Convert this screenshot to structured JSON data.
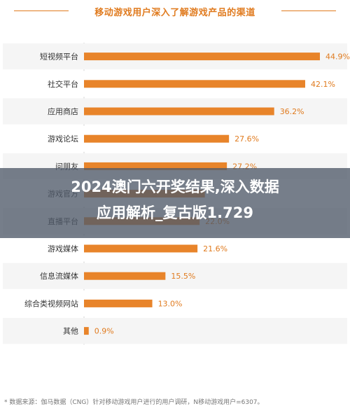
{
  "chart_data": {
    "type": "bar",
    "orientation": "horizontal",
    "title": "移动游戏用户深入了解游戏产品的渠道",
    "categories": [
      "短视频平台",
      "社交平台",
      "应用商店",
      "游戏论坛",
      "问朋友",
      "游戏官方",
      "直播平台",
      "游戏媒体",
      "信息流媒体",
      "综合类视频网站",
      "其他"
    ],
    "values": [
      44.9,
      42.1,
      36.2,
      27.6,
      27.2,
      23.0,
      22.0,
      21.6,
      15.5,
      13.0,
      0.9
    ],
    "value_labels": [
      "44.9%",
      "42.1%",
      "36.2%",
      "27.6%",
      "27.2%",
      "",
      "22.0%",
      "21.6%",
      "15.5%",
      "13.0%",
      "0.9%"
    ],
    "unit": "%",
    "xlim": [
      0,
      50
    ],
    "grid": false,
    "bar_color": "#e8842a",
    "row_colors": [
      "#f5f5f5",
      "#ffffff"
    ]
  },
  "overlay_title": {
    "line1": "2024澳门六开奖结果,深入数据",
    "line2": "应用解析_复古版1.729"
  },
  "footnote": "* 数据来源：伽马数据（CNG）针对移动游戏用户进行的用户调研，N移动游戏用户=6307。",
  "colors": {
    "accent": "#e07b1f",
    "overlay": "#505a69"
  }
}
